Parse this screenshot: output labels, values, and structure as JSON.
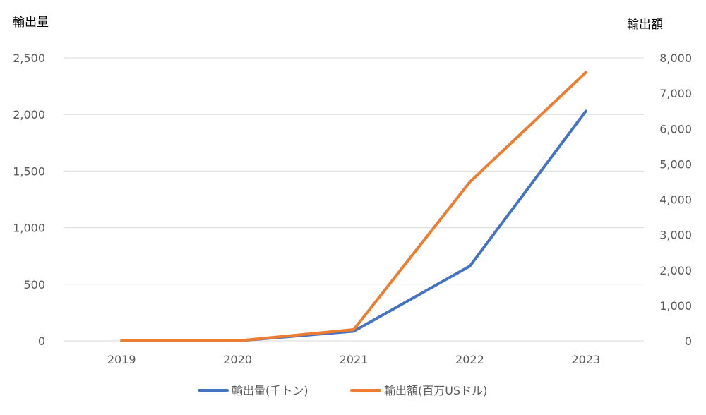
{
  "chart_data": {
    "type": "line",
    "categories": [
      "2019",
      "2020",
      "2021",
      "2022",
      "2023"
    ],
    "left_axis": {
      "title": "輸出量",
      "ylim": [
        0,
        2500
      ],
      "ticks": [
        0,
        500,
        1000,
        1500,
        2000,
        2500
      ],
      "tick_labels": [
        "0",
        "500",
        "1,000",
        "1,500",
        "2,000",
        "2,500"
      ]
    },
    "right_axis": {
      "title": "輸出額",
      "ylim": [
        0,
        8000
      ],
      "ticks": [
        0,
        1000,
        2000,
        3000,
        4000,
        5000,
        6000,
        7000,
        8000
      ],
      "tick_labels": [
        "0",
        "1,000",
        "2,000",
        "3,000",
        "4,000",
        "5,000",
        "6,000",
        "7,000",
        "8,000"
      ]
    },
    "series": [
      {
        "name": "輸出量(千トン)",
        "axis": "left",
        "color": "#4472c4",
        "values": [
          0,
          0,
          85,
          660,
          2030
        ]
      },
      {
        "name": "輸出額(百万USドル)",
        "axis": "right",
        "color": "#ed7d31",
        "values": [
          0,
          0,
          320,
          4490,
          7590
        ]
      }
    ],
    "grid": true,
    "legend_position": "bottom"
  }
}
